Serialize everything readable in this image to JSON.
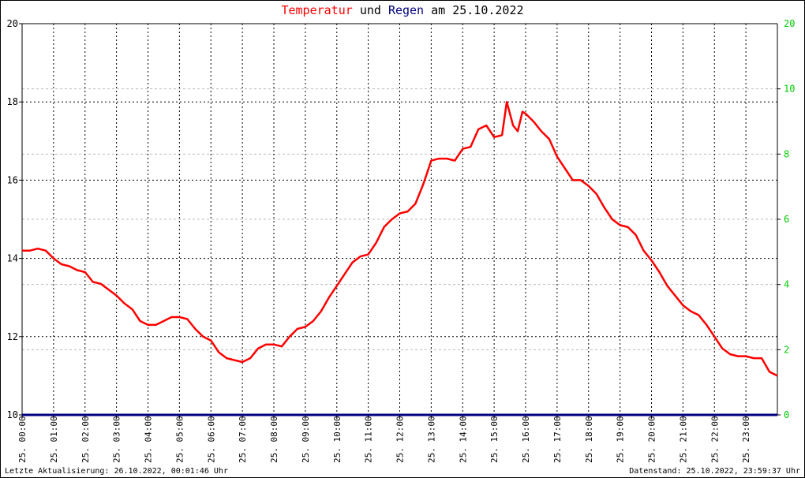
{
  "title": {
    "part1": "Temperatur",
    "part2": "und",
    "part3": "Regen",
    "part4": "am 25.10.2022"
  },
  "footer": {
    "left": "Letzte Aktualisierung: 26.10.2022, 00:01:46 Uhr",
    "right": "Datenstand: 25.10.2022, 23:59:37 Uhr"
  },
  "colors": {
    "temperature": "#ff0000",
    "rain": "#000080",
    "right_axis_labels": "#00cc00",
    "grid": "#000000",
    "minor_grid": "#bbbbbb"
  },
  "chart_data": {
    "type": "line",
    "grid": true,
    "x_ticks": [
      "25. 00:00",
      "25. 01:00",
      "25. 02:00",
      "25. 03:00",
      "25. 04:00",
      "25. 05:00",
      "25. 06:00",
      "25. 07:00",
      "25. 08:00",
      "25. 09:00",
      "25. 10:00",
      "25. 11:00",
      "25. 12:00",
      "25. 13:00",
      "25. 14:00",
      "25. 15:00",
      "25. 16:00",
      "25. 17:00",
      "25. 18:00",
      "25. 19:00",
      "25. 20:00",
      "25. 21:00",
      "25. 22:00",
      "25. 23:00"
    ],
    "xlim": [
      0,
      24
    ],
    "y_left": {
      "ylim": [
        10,
        20
      ],
      "ticks": [
        "10",
        "12",
        "14",
        "16",
        "18",
        "20"
      ]
    },
    "y_right": {
      "ylim": [
        0,
        12
      ],
      "ticks": [
        "0",
        "2",
        "4",
        "6",
        "8",
        "10"
      ],
      "top_label": "20"
    },
    "series": [
      {
        "name": "Temperatur",
        "axis": "left",
        "x": [
          0,
          0.25,
          0.5,
          0.75,
          1.0,
          1.25,
          1.5,
          1.75,
          2.0,
          2.25,
          2.5,
          2.75,
          3.0,
          3.25,
          3.5,
          3.75,
          4.0,
          4.25,
          4.5,
          4.75,
          5.0,
          5.25,
          5.5,
          5.75,
          6.0,
          6.25,
          6.5,
          6.75,
          7.0,
          7.25,
          7.5,
          7.75,
          8.0,
          8.25,
          8.5,
          8.75,
          9.0,
          9.25,
          9.5,
          9.75,
          10.0,
          10.25,
          10.5,
          10.75,
          11.0,
          11.25,
          11.5,
          11.75,
          12.0,
          12.25,
          12.5,
          12.75,
          13.0,
          13.25,
          13.5,
          13.75,
          14.0,
          14.25,
          14.5,
          14.75,
          15.0,
          15.25,
          15.4,
          15.6,
          15.75,
          15.9,
          16.0,
          16.25,
          16.5,
          16.75,
          17.0,
          17.25,
          17.5,
          17.75,
          18.0,
          18.25,
          18.5,
          18.75,
          19.0,
          19.25,
          19.5,
          19.75,
          20.0,
          20.25,
          20.5,
          20.75,
          21.0,
          21.25,
          21.5,
          21.75,
          22.0,
          22.25,
          22.5,
          22.75,
          23.0,
          23.25,
          23.5,
          23.75,
          24.0
        ],
        "y": [
          14.2,
          14.2,
          14.25,
          14.2,
          14.0,
          13.85,
          13.8,
          13.7,
          13.65,
          13.4,
          13.35,
          13.2,
          13.05,
          12.85,
          12.7,
          12.4,
          12.3,
          12.3,
          12.4,
          12.5,
          12.5,
          12.45,
          12.2,
          12.0,
          11.9,
          11.6,
          11.45,
          11.4,
          11.35,
          11.45,
          11.7,
          11.8,
          11.8,
          11.75,
          12.0,
          12.2,
          12.25,
          12.4,
          12.65,
          13.0,
          13.3,
          13.6,
          13.9,
          14.05,
          14.1,
          14.4,
          14.8,
          15.0,
          15.15,
          15.2,
          15.4,
          15.9,
          16.5,
          16.55,
          16.55,
          16.5,
          16.8,
          16.85,
          17.3,
          17.4,
          17.1,
          17.15,
          18.0,
          17.4,
          17.25,
          17.75,
          17.7,
          17.5,
          17.25,
          17.05,
          16.6,
          16.3,
          16.0,
          16.0,
          15.85,
          15.65,
          15.3,
          15.0,
          14.85,
          14.8,
          14.6,
          14.2,
          13.95,
          13.65,
          13.3,
          13.05,
          12.8,
          12.65,
          12.55,
          12.3,
          12.0,
          11.7,
          11.55,
          11.5,
          11.5,
          11.45,
          11.45,
          11.1,
          11.0
        ]
      },
      {
        "name": "Regen",
        "axis": "right",
        "x": [
          0,
          24
        ],
        "y": [
          0,
          0
        ]
      }
    ]
  }
}
